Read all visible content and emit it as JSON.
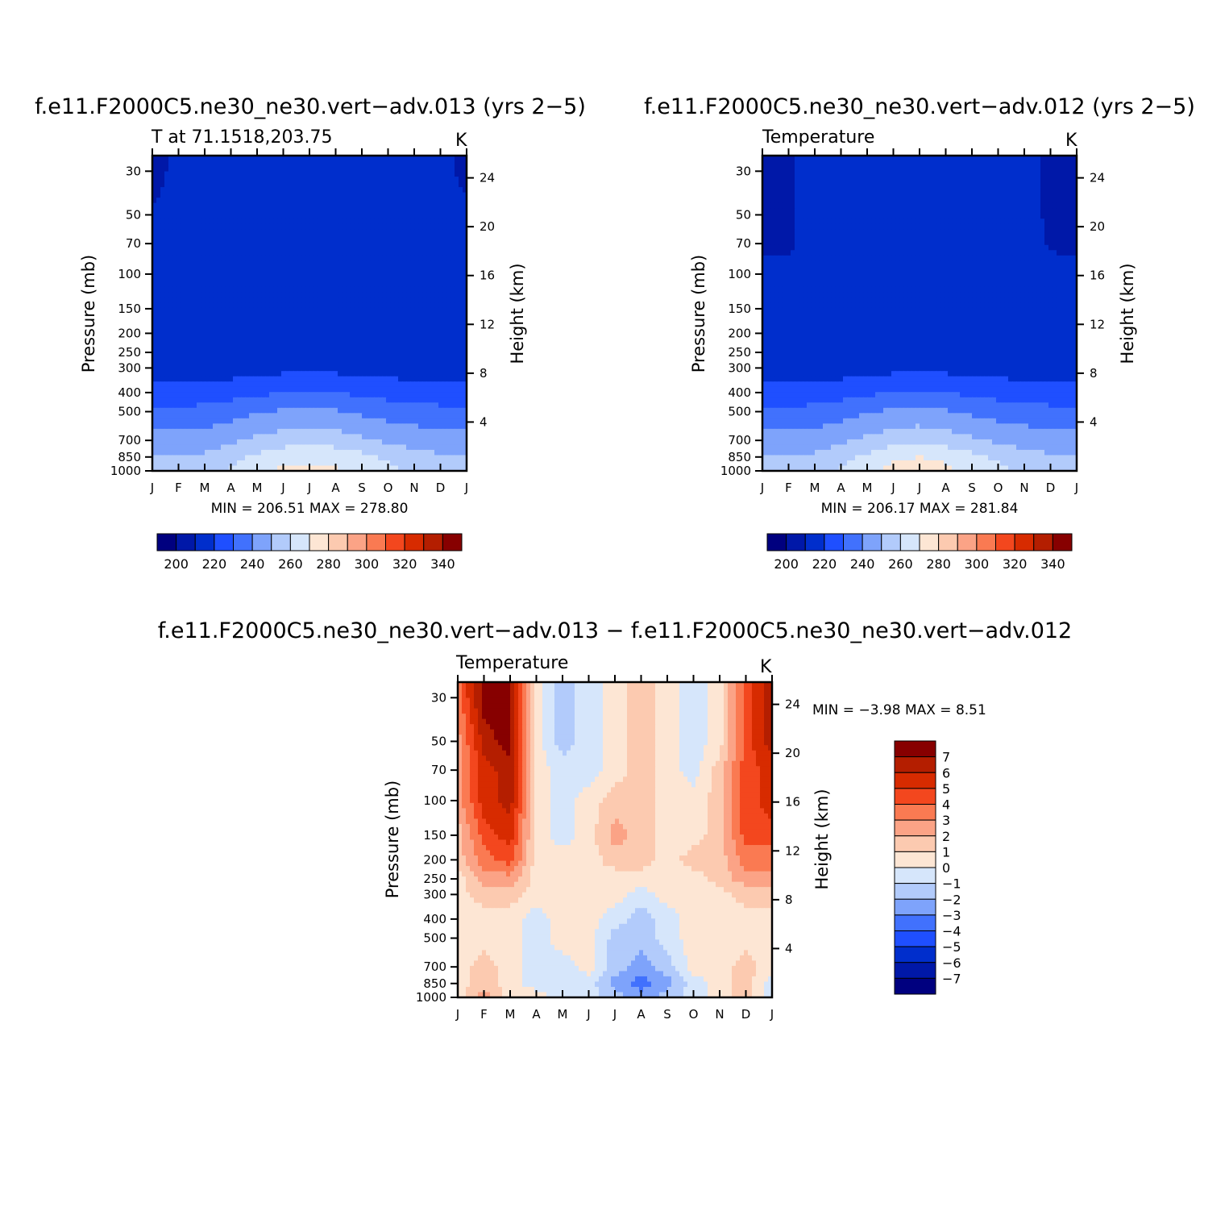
{
  "chart_data": [
    {
      "type": "heatmap",
      "title": "f.e11.F2000C5.ne30_ne30.vert−adv.013 (yrs 2−5)",
      "subtitle": "T at 71.1518,203.75",
      "units": "K",
      "xlabel": "",
      "ylabel": "Pressure (mb)",
      "y2label": "Height (km)",
      "x_ticks": [
        "J",
        "F",
        "M",
        "A",
        "M",
        "J",
        "J",
        "A",
        "S",
        "O",
        "N",
        "D",
        "J"
      ],
      "y_ticks": [
        "30",
        "50",
        "70",
        "100",
        "150",
        "200",
        "250",
        "300",
        "400",
        "500",
        "700",
        "850",
        "1000"
      ],
      "y2_ticks": [
        "24",
        "20",
        "16",
        "12",
        "8",
        "4"
      ],
      "ylim": [
        1000,
        25
      ],
      "stats": "MIN = 206.51 MAX = 278.80",
      "min": 206.51,
      "max": 278.8,
      "levels_approx": [
        [
          205,
          214,
          215,
          215,
          215,
          215,
          215,
          215,
          215,
          215,
          214,
          214,
          207
        ],
        [
          212,
          213,
          215,
          215,
          215,
          215,
          215,
          215,
          215,
          214,
          215,
          214,
          212
        ],
        [
          213,
          213,
          214,
          215,
          215,
          215,
          215,
          215,
          215,
          214,
          214,
          214,
          213
        ],
        [
          213,
          213,
          214,
          214,
          215,
          215,
          215,
          215,
          215,
          214,
          214,
          214,
          213
        ],
        [
          213,
          213,
          213,
          213,
          215,
          215,
          215,
          215,
          214,
          213,
          213,
          213,
          213
        ],
        [
          213,
          213,
          213,
          213,
          213,
          214,
          215,
          214,
          213,
          213,
          213,
          213,
          213
        ],
        [
          213,
          213,
          213,
          213,
          213,
          214,
          216,
          214,
          213,
          213,
          213,
          213,
          213
        ],
        [
          214,
          214,
          214,
          215,
          216,
          217,
          218,
          217,
          216,
          216,
          215,
          215,
          214
        ],
        [
          224,
          224,
          225,
          226,
          228,
          230,
          230,
          230,
          228,
          226,
          225,
          224,
          224
        ],
        [
          232,
          232,
          233,
          236,
          239,
          241,
          242,
          241,
          238,
          236,
          234,
          233,
          232
        ],
        [
          244,
          244,
          245,
          248,
          252,
          255,
          256,
          255,
          252,
          248,
          246,
          245,
          244
        ],
        [
          250,
          250,
          252,
          257,
          262,
          267,
          268,
          267,
          263,
          258,
          254,
          251,
          250
        ],
        [
          252,
          252,
          254,
          261,
          268,
          272,
          272,
          271,
          268,
          263,
          257,
          253,
          252
        ]
      ]
    },
    {
      "type": "heatmap",
      "title": "f.e11.F2000C5.ne30_ne30.vert−adv.012 (yrs 2−5)",
      "subtitle": "Temperature",
      "units": "K",
      "xlabel": "",
      "ylabel": "Pressure (mb)",
      "y2label": "Height (km)",
      "x_ticks": [
        "J",
        "F",
        "M",
        "A",
        "M",
        "J",
        "J",
        "A",
        "S",
        "O",
        "N",
        "D",
        "J"
      ],
      "y_ticks": [
        "30",
        "50",
        "70",
        "100",
        "150",
        "200",
        "250",
        "300",
        "400",
        "500",
        "700",
        "850",
        "1000"
      ],
      "y2_ticks": [
        "24",
        "20",
        "16",
        "12",
        "8",
        "4"
      ],
      "ylim": [
        1000,
        25
      ],
      "stats": "MIN = 206.17 MAX = 281.84",
      "min": 206.17,
      "max": 281.84,
      "levels_approx": [
        [
          208,
          208,
          215,
          215,
          215,
          215,
          215,
          215,
          215,
          214,
          214,
          208,
          208
        ],
        [
          208,
          208,
          215,
          215,
          215,
          215,
          215,
          215,
          215,
          214,
          214,
          208,
          208
        ],
        [
          208,
          208,
          215,
          215,
          215,
          215,
          215,
          215,
          215,
          214,
          214,
          209,
          208
        ],
        [
          213,
          213,
          214,
          215,
          215,
          215,
          215,
          215,
          215,
          214,
          214,
          213,
          213
        ],
        [
          213,
          213,
          213,
          214,
          215,
          215,
          215,
          215,
          215,
          214,
          213,
          213,
          213
        ],
        [
          213,
          213,
          213,
          213,
          214,
          214,
          214,
          214,
          214,
          213,
          213,
          213,
          213
        ],
        [
          213,
          213,
          213,
          213,
          213,
          213,
          214,
          213,
          213,
          213,
          213,
          213,
          213
        ],
        [
          214,
          214,
          214,
          215,
          216,
          217,
          218,
          217,
          216,
          216,
          215,
          215,
          214
        ],
        [
          224,
          224,
          225,
          226,
          228,
          230,
          231,
          230,
          228,
          226,
          225,
          224,
          224
        ],
        [
          232,
          232,
          233,
          236,
          239,
          242,
          243,
          241,
          238,
          236,
          234,
          233,
          232
        ],
        [
          244,
          244,
          245,
          248,
          252,
          256,
          257,
          255,
          252,
          248,
          246,
          245,
          244
        ],
        [
          250,
          250,
          252,
          257,
          262,
          268,
          270,
          268,
          263,
          258,
          254,
          251,
          250
        ],
        [
          252,
          252,
          254,
          261,
          268,
          273,
          276,
          272,
          268,
          263,
          257,
          253,
          252
        ]
      ]
    },
    {
      "type": "heatmap",
      "title": "f.e11.F2000C5.ne30_ne30.vert−adv.013 − f.e11.F2000C5.ne30_ne30.vert−adv.012",
      "subtitle": "Temperature",
      "units": "K",
      "xlabel": "",
      "ylabel": "Pressure (mb)",
      "y2label": "Height (km)",
      "x_ticks": [
        "J",
        "F",
        "M",
        "A",
        "M",
        "J",
        "J",
        "A",
        "S",
        "O",
        "N",
        "D",
        "J"
      ],
      "y_ticks": [
        "30",
        "50",
        "70",
        "100",
        "150",
        "200",
        "250",
        "300",
        "400",
        "500",
        "700",
        "850",
        "1000"
      ],
      "y2_ticks": [
        "24",
        "20",
        "16",
        "12",
        "8",
        "4"
      ],
      "ylim": [
        1000,
        25
      ],
      "stats": "MIN = −3.98 MAX = 8.51",
      "min": -3.98,
      "max": 8.51,
      "levels_approx": [
        [
          3.5,
          7.5,
          7.5,
          0.5,
          -1.5,
          -0.5,
          0.5,
          1.5,
          0.5,
          -0.5,
          0.5,
          4.5,
          6.5
        ],
        [
          2.5,
          6.5,
          7.5,
          0.5,
          -1.5,
          -0.5,
          0.5,
          1.5,
          0.5,
          -0.5,
          0.5,
          4.5,
          6.5
        ],
        [
          2.5,
          5.5,
          6.5,
          0.5,
          -0.5,
          -0.5,
          0.5,
          1.5,
          0.5,
          -0.5,
          1.5,
          4.5,
          5.5
        ],
        [
          2.5,
          5.5,
          6.5,
          0.5,
          -0.5,
          0.5,
          1.5,
          1.5,
          0.5,
          0.5,
          1.5,
          4.5,
          5.5
        ],
        [
          1.5,
          4.5,
          5.5,
          0.5,
          -0.5,
          0.5,
          2.5,
          1.5,
          0.5,
          0.5,
          1.5,
          4.5,
          4.5
        ],
        [
          1.5,
          3.5,
          4.5,
          0.5,
          0.5,
          0.5,
          1.5,
          1.5,
          0.5,
          1.5,
          1.5,
          3.5,
          3.5
        ],
        [
          0.5,
          2.5,
          2.5,
          0.5,
          0.5,
          0.5,
          0.5,
          0.5,
          0.5,
          0.5,
          1.5,
          2.5,
          2.5
        ],
        [
          0.5,
          1.5,
          1.5,
          0.5,
          0.5,
          0.5,
          0.5,
          -0.5,
          0.5,
          0.5,
          0.5,
          1.5,
          1.5
        ],
        [
          0.5,
          0.5,
          0.5,
          -0.5,
          0.5,
          0.5,
          -0.5,
          -1.5,
          -0.5,
          0.5,
          0.5,
          0.5,
          0.5
        ],
        [
          0.5,
          0.5,
          0.5,
          -0.5,
          0.5,
          0.5,
          -1.5,
          -1.5,
          -0.5,
          0.5,
          0.5,
          0.5,
          0.5
        ],
        [
          0.5,
          1.5,
          0.5,
          -0.5,
          -0.5,
          0.5,
          -1.5,
          -2.5,
          -1.5,
          0.5,
          0.5,
          1.5,
          0.5
        ],
        [
          0.5,
          1.5,
          0.5,
          -0.5,
          -0.5,
          -0.5,
          -2.5,
          -3.5,
          -2.5,
          -0.5,
          0.5,
          1.5,
          -0.5
        ],
        [
          0.5,
          2.5,
          0.5,
          0.5,
          -0.5,
          -0.5,
          -1.5,
          -2.5,
          -1.5,
          -0.5,
          0.5,
          1.5,
          -0.5
        ]
      ]
    }
  ],
  "colorbar_abs": {
    "colors": [
      "#00007f",
      "#0018a8",
      "#002ecc",
      "#1f4fff",
      "#4171fd",
      "#7ea3fb",
      "#b2cbfb",
      "#d6e6fb",
      "#fde6d4",
      "#fccab0",
      "#fba386",
      "#fa7a52",
      "#f3471e",
      "#d72b00",
      "#b41e00",
      "#870000"
    ],
    "labels": [
      "200",
      "220",
      "240",
      "260",
      "280",
      "300",
      "320",
      "340"
    ],
    "level_start": 200,
    "level_step": 10
  },
  "colorbar_diff": {
    "colors": [
      "#00007f",
      "#0018a8",
      "#002ecc",
      "#1f4fff",
      "#4171fd",
      "#7ea3fb",
      "#b2cbfb",
      "#d6e6fb",
      "#fde6d4",
      "#fccab0",
      "#fba386",
      "#fa7a52",
      "#f3471e",
      "#d72b00",
      "#b41e00",
      "#870000"
    ],
    "labels": [
      "7",
      "6",
      "5",
      "4",
      "3",
      "2",
      "1",
      "0",
      "−1",
      "−2",
      "−3",
      "−4",
      "−5",
      "−6",
      "−7"
    ],
    "level_start": -7,
    "level_step": 1
  }
}
